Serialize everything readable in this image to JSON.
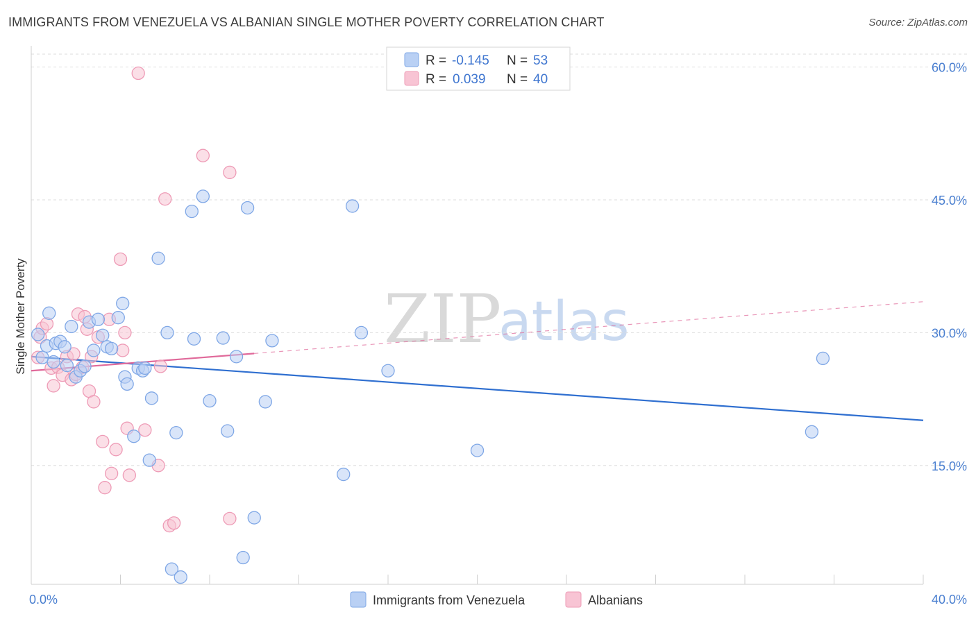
{
  "header": {
    "title": "IMMIGRANTS FROM VENEZUELA VS ALBANIAN SINGLE MOTHER POVERTY CORRELATION CHART",
    "source": "Source: ZipAtlas.com"
  },
  "watermark": {
    "zip": "ZIP",
    "atlas": "atlas"
  },
  "colors": {
    "blue_fill": "#b9d0f4",
    "blue_stroke": "#7fa7e6",
    "blue_line": "#2f6fd0",
    "pink_fill": "#f8c4d4",
    "pink_stroke": "#ee9bb6",
    "pink_line": "#e0699a",
    "grid": "#dedede",
    "axis_text": "#4a7fd0"
  },
  "legend": {
    "rows": [
      {
        "r_label": "R = ",
        "r_value": "-0.145",
        "n_label": "N = ",
        "n_value": "53"
      },
      {
        "r_label": "R = ",
        "r_value": "0.039",
        "n_label": "N = ",
        "n_value": "40"
      }
    ]
  },
  "bottom_legend": [
    "Immigrants from Venezuela",
    "Albanians"
  ],
  "chart_data": {
    "type": "scatter",
    "title": "IMMIGRANTS FROM VENEZUELA VS ALBANIAN SINGLE MOTHER POVERTY CORRELATION CHART",
    "xlabel": "",
    "ylabel": "Single Mother Poverty",
    "xlim": [
      0,
      40
    ],
    "ylim": [
      0,
      63
    ],
    "x_tick_labels": [
      "0.0%",
      "40.0%"
    ],
    "y_ticks": [
      15,
      30,
      45,
      60
    ],
    "y_tick_labels": [
      "15.0%",
      "30.0%",
      "45.0%",
      "60.0%"
    ],
    "series": [
      {
        "name": "Immigrants from Venezuela",
        "R": -0.145,
        "N": 53,
        "trend": {
          "x": [
            0,
            40
          ],
          "y": [
            27.3,
            20.1
          ],
          "dashed_after": null
        },
        "points": [
          [
            0.3,
            29.8
          ],
          [
            0.5,
            27.2
          ],
          [
            0.7,
            28.5
          ],
          [
            0.8,
            32.2
          ],
          [
            1.0,
            26.7
          ],
          [
            1.1,
            28.8
          ],
          [
            1.3,
            29.0
          ],
          [
            1.5,
            28.4
          ],
          [
            1.6,
            26.3
          ],
          [
            1.8,
            30.7
          ],
          [
            2.0,
            25.0
          ],
          [
            2.2,
            25.7
          ],
          [
            2.4,
            26.2
          ],
          [
            2.6,
            31.2
          ],
          [
            2.8,
            28.0
          ],
          [
            3.0,
            31.5
          ],
          [
            3.2,
            29.7
          ],
          [
            3.4,
            28.4
          ],
          [
            3.6,
            28.2
          ],
          [
            3.9,
            31.7
          ],
          [
            4.1,
            33.3
          ],
          [
            4.2,
            25.0
          ],
          [
            4.3,
            24.2
          ],
          [
            4.6,
            18.3
          ],
          [
            4.8,
            26.0
          ],
          [
            5.0,
            25.7
          ],
          [
            5.1,
            26.0
          ],
          [
            5.3,
            15.6
          ],
          [
            5.4,
            22.6
          ],
          [
            5.7,
            38.4
          ],
          [
            6.1,
            30.0
          ],
          [
            6.3,
            3.3
          ],
          [
            6.5,
            18.7
          ],
          [
            6.7,
            2.4
          ],
          [
            7.2,
            43.7
          ],
          [
            7.3,
            29.3
          ],
          [
            7.7,
            45.4
          ],
          [
            8.0,
            22.3
          ],
          [
            8.6,
            29.4
          ],
          [
            8.8,
            18.9
          ],
          [
            9.2,
            27.3
          ],
          [
            9.5,
            4.6
          ],
          [
            9.7,
            44.1
          ],
          [
            10.0,
            9.1
          ],
          [
            10.5,
            22.2
          ],
          [
            10.8,
            29.1
          ],
          [
            14.0,
            14.0
          ],
          [
            14.4,
            44.3
          ],
          [
            14.8,
            30.0
          ],
          [
            16.0,
            25.7
          ],
          [
            20.0,
            16.7
          ],
          [
            35.0,
            18.8
          ],
          [
            35.5,
            27.1
          ]
        ]
      },
      {
        "name": "Albanians",
        "R": 0.039,
        "N": 40,
        "trend": {
          "x": [
            0,
            40
          ],
          "y": [
            25.7,
            33.5
          ],
          "solid_until": 10
        },
        "points": [
          [
            0.3,
            27.2
          ],
          [
            0.4,
            29.5
          ],
          [
            0.5,
            30.5
          ],
          [
            0.7,
            31.0
          ],
          [
            0.9,
            26.0
          ],
          [
            1.0,
            24.0
          ],
          [
            1.2,
            26.1
          ],
          [
            1.4,
            25.2
          ],
          [
            1.6,
            27.3
          ],
          [
            1.8,
            24.7
          ],
          [
            1.9,
            27.6
          ],
          [
            2.0,
            25.3
          ],
          [
            2.1,
            32.1
          ],
          [
            2.3,
            26.1
          ],
          [
            2.4,
            31.8
          ],
          [
            2.5,
            30.4
          ],
          [
            2.6,
            23.4
          ],
          [
            2.7,
            27.3
          ],
          [
            2.8,
            22.2
          ],
          [
            3.0,
            29.5
          ],
          [
            3.2,
            17.7
          ],
          [
            3.3,
            12.5
          ],
          [
            3.5,
            31.5
          ],
          [
            3.6,
            14.1
          ],
          [
            3.8,
            16.8
          ],
          [
            4.0,
            38.3
          ],
          [
            4.1,
            28.0
          ],
          [
            4.2,
            30.0
          ],
          [
            4.3,
            19.2
          ],
          [
            4.4,
            13.9
          ],
          [
            4.8,
            59.3
          ],
          [
            5.1,
            19.0
          ],
          [
            5.7,
            15.0
          ],
          [
            5.8,
            26.2
          ],
          [
            6.0,
            45.1
          ],
          [
            6.2,
            8.2
          ],
          [
            6.4,
            8.5
          ],
          [
            7.7,
            50.0
          ],
          [
            8.9,
            9.0
          ],
          [
            8.9,
            48.1
          ]
        ]
      }
    ]
  }
}
